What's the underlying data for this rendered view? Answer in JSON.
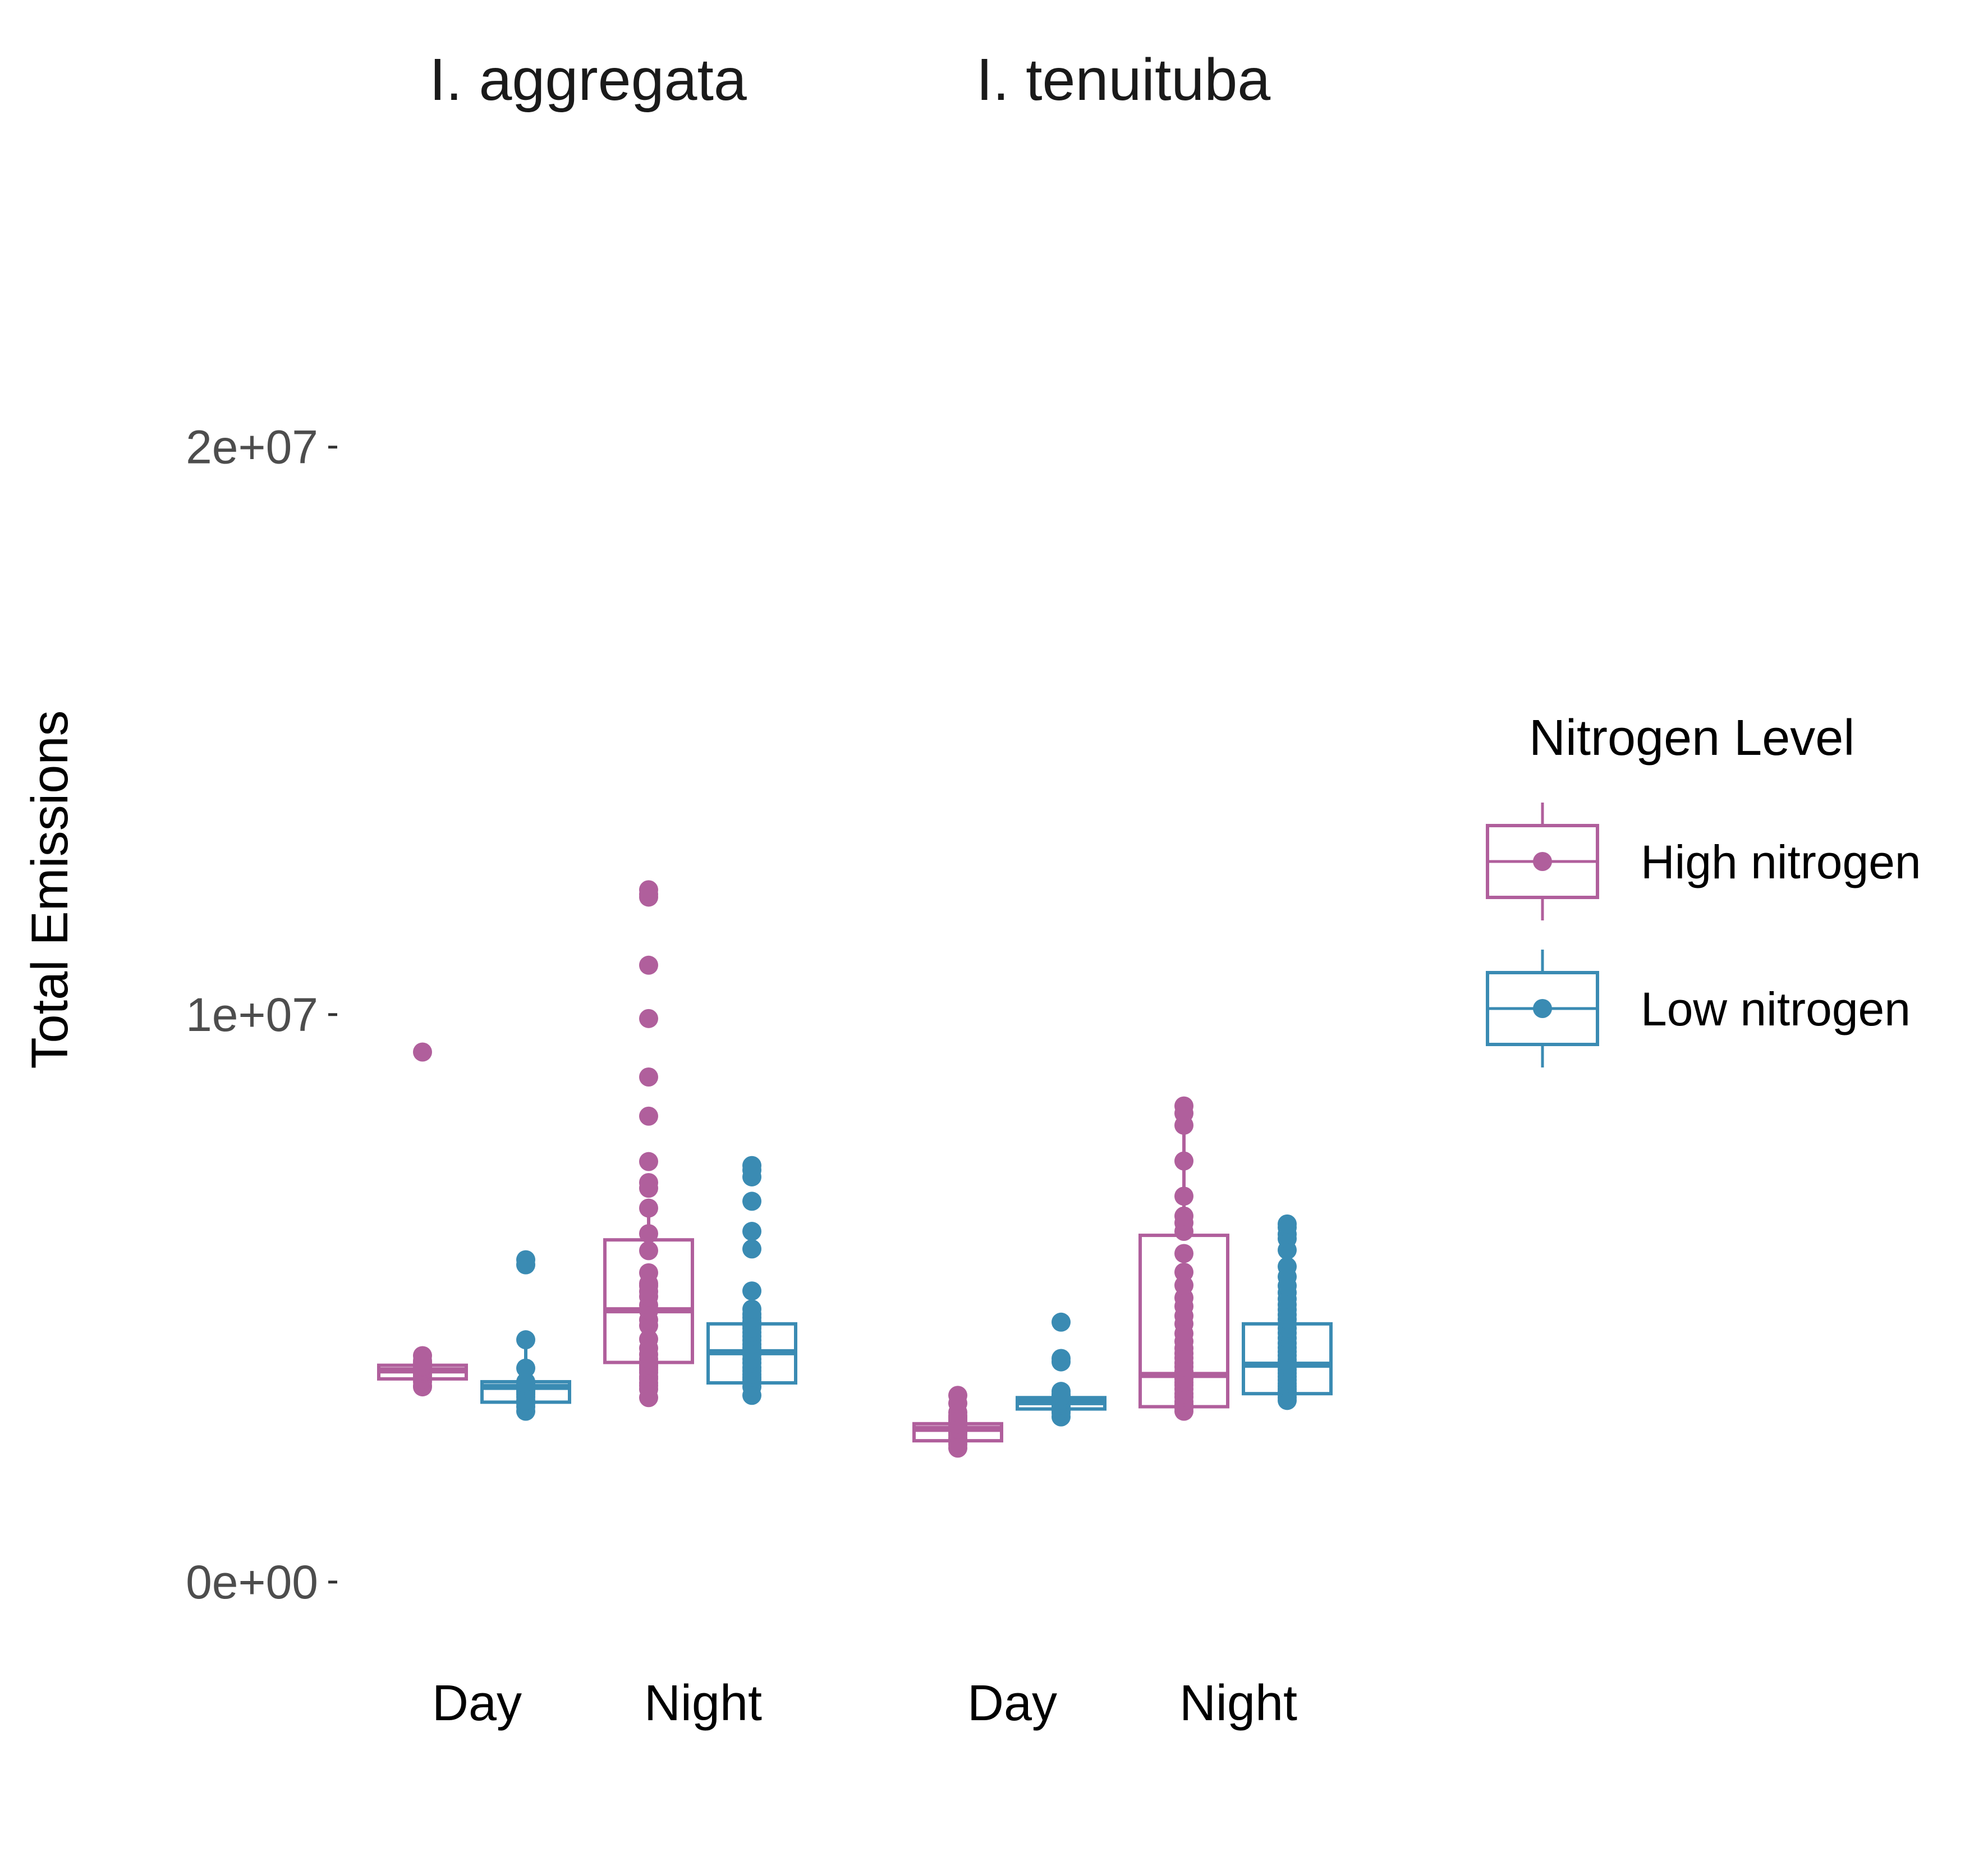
{
  "colors": {
    "high": "#b05f9c",
    "low": "#3a8bb3",
    "tick": "#333333"
  },
  "chart_data": {
    "type": "boxplot",
    "ylabel": "Total Emissions",
    "y_ticks": [
      {
        "value": 0,
        "label": "0e+00"
      },
      {
        "value": 10000000,
        "label": "1e+07"
      },
      {
        "value": 20000000,
        "label": "2e+07"
      }
    ],
    "ylim": [
      -1000000,
      26000000
    ],
    "legend": {
      "title": "Nitrogen Level",
      "position": "right",
      "items": [
        {
          "key": "high",
          "label": "High nitrogen"
        },
        {
          "key": "low",
          "label": "Low nitrogen"
        }
      ]
    },
    "facets": [
      {
        "title": "I. aggregata",
        "categories": [
          "Day",
          "Night"
        ],
        "groups": [
          {
            "category": "Day",
            "series": "high",
            "box": {
              "lower": 3440000,
              "q1": 3580000,
              "median": 3730000,
              "q3": 3820000,
              "upper": 3990000
            },
            "points": [
              3440000,
              3460000,
              3530000,
              3580000,
              3620000,
              3650000,
              3680000,
              3700000,
              3720000,
              3730000,
              3750000,
              3770000,
              3790000,
              3800000,
              3820000,
              3850000,
              3870000,
              3900000,
              3990000,
              9340000
            ]
          },
          {
            "category": "Day",
            "series": "low",
            "box": {
              "lower": 3010000,
              "q1": 3170000,
              "median": 3440000,
              "q3": 3530000,
              "upper": 4150000
            },
            "points": [
              3010000,
              3090000,
              3150000,
              3180000,
              3200000,
              3260000,
              3310000,
              3350000,
              3390000,
              3420000,
              3440000,
              3470000,
              3500000,
              3530000,
              3770000,
              4270000,
              5590000,
              5680000
            ]
          },
          {
            "category": "Night",
            "series": "high",
            "box": {
              "lower": 3250000,
              "q1": 3870000,
              "median": 4790000,
              "q3": 6030000,
              "upper": 6460000
            },
            "points": [
              3250000,
              3400000,
              3460000,
              3510000,
              3580000,
              3620000,
              3690000,
              3740000,
              3780000,
              3820000,
              3870000,
              3930000,
              4010000,
              4120000,
              4280000,
              4520000,
              4620000,
              4780000,
              4790000,
              4810000,
              4880000,
              5030000,
              5120000,
              5220000,
              5260000,
              5450000,
              5840000,
              6140000,
              6590000,
              6940000,
              7040000,
              7410000,
              8210000,
              8900000,
              9930000,
              10870000,
              12070000,
              12120000,
              12200000
            ]
          },
          {
            "category": "Night",
            "series": "low",
            "box": {
              "lower": 3290000,
              "q1": 3510000,
              "median": 4050000,
              "q3": 4550000,
              "upper": 4720000
            },
            "points": [
              3290000,
              3440000,
              3520000,
              3570000,
              3610000,
              3660000,
              3720000,
              3780000,
              3860000,
              3930000,
              4010000,
              4080000,
              4130000,
              4190000,
              4260000,
              4330000,
              4400000,
              4470000,
              4520000,
              4590000,
              4660000,
              4720000,
              4810000,
              5130000,
              5870000,
              6180000,
              6710000,
              7140000,
              7260000,
              7340000
            ]
          }
        ]
      },
      {
        "title": "I. tenuituba",
        "categories": [
          "Day",
          "Night"
        ],
        "groups": [
          {
            "category": "Day",
            "series": "high",
            "box": {
              "lower": 2360000,
              "q1": 2490000,
              "median": 2700000,
              "q3": 2790000,
              "upper": 2930000
            },
            "points": [
              2360000,
              2420000,
              2470000,
              2510000,
              2540000,
              2590000,
              2630000,
              2660000,
              2690000,
              2700000,
              2730000,
              2760000,
              2780000,
              2800000,
              2830000,
              2870000,
              2900000,
              2930000,
              2990000,
              3150000,
              3290000
            ]
          },
          {
            "category": "Day",
            "series": "low",
            "box": {
              "lower": 2910000,
              "q1": 3050000,
              "median": 3170000,
              "q3": 3250000,
              "upper": 3310000
            },
            "points": [
              2910000,
              2980000,
              3020000,
              3060000,
              3090000,
              3120000,
              3150000,
              3170000,
              3190000,
              3210000,
              3230000,
              3260000,
              3280000,
              3310000,
              3360000,
              3880000,
              3940000,
              4580000
            ]
          },
          {
            "category": "Night",
            "series": "high",
            "box": {
              "lower": 3010000,
              "q1": 3090000,
              "median": 3650000,
              "q3": 6110000,
              "upper": 8050000
            },
            "points": [
              3010000,
              3070000,
              3130000,
              3180000,
              3260000,
              3320000,
              3400000,
              3470000,
              3520000,
              3580000,
              3650000,
              3710000,
              3790000,
              3860000,
              3950000,
              4030000,
              4120000,
              4240000,
              4380000,
              4550000,
              4690000,
              4860000,
              5010000,
              5230000,
              5460000,
              5790000,
              6180000,
              6330000,
              6450000,
              6800000,
              7420000,
              8050000,
              8260000,
              8390000
            ]
          },
          {
            "category": "Night",
            "series": "low",
            "box": {
              "lower": 3200000,
              "q1": 3320000,
              "median": 3830000,
              "q3": 4550000,
              "upper": 5850000
            },
            "points": [
              3200000,
              3250000,
              3310000,
              3350000,
              3400000,
              3450000,
              3500000,
              3560000,
              3620000,
              3680000,
              3740000,
              3800000,
              3830000,
              3870000,
              3920000,
              3990000,
              4060000,
              4130000,
              4210000,
              4300000,
              4390000,
              4470000,
              4550000,
              4630000,
              4710000,
              4800000,
              4890000,
              4990000,
              5100000,
              5220000,
              5380000,
              5560000,
              5850000,
              6050000,
              6130000,
              6250000,
              6310000
            ]
          }
        ]
      }
    ]
  }
}
